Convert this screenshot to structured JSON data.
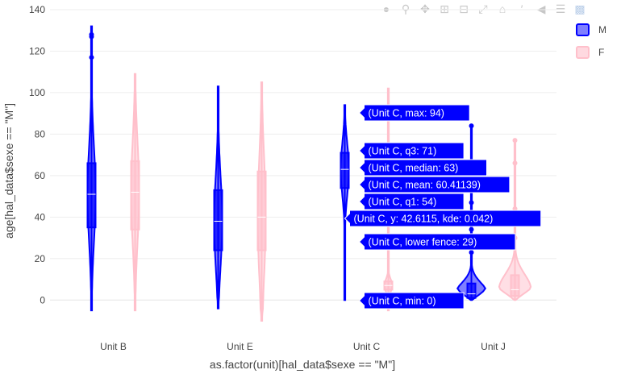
{
  "toolbar": {
    "icons": [
      "camera-icon",
      "zoom-icon",
      "pan-icon",
      "zoom-in-icon",
      "zoom-out-icon",
      "autoscale-icon",
      "reset-axes-icon",
      "spike-lines-icon",
      "hover-closest-icon",
      "hover-compare-icon",
      "plotly-logo-icon"
    ]
  },
  "chart_data": {
    "type": "violin",
    "xlabel": "as.factor(unit)[hal_data$sexe == \"M\"]",
    "ylabel": "age[hal_data$sexe == \"M\"]",
    "categories": [
      "Unit B",
      "Unit E",
      "Unit C",
      "Unit J"
    ],
    "ylim": [
      -10,
      140
    ],
    "yticks": [
      0,
      20,
      40,
      60,
      80,
      100,
      120,
      140
    ],
    "grid": true,
    "legend_position": "top-right",
    "series": [
      {
        "name": "M",
        "color": "#0000ff",
        "violins": [
          {
            "category": "Unit B",
            "min": -5,
            "q1": 35,
            "median": 51,
            "q3": 66,
            "max": 132,
            "extra_points": [
              117,
              127,
              128
            ]
          },
          {
            "category": "Unit E",
            "min": -4,
            "q1": 24,
            "median": 38,
            "q3": 53,
            "max": 103,
            "extra_points": []
          },
          {
            "category": "Unit C",
            "min": 0,
            "q1": 54,
            "median": 63,
            "mean": 60.41139,
            "q3": 71,
            "max": 94,
            "lower_fence": 29,
            "extra_points": []
          },
          {
            "category": "Unit J",
            "min": 0,
            "q1": 1,
            "median": 3,
            "q3": 8,
            "max": 84,
            "extra_points": [
              23,
              34,
              47,
              55,
              66,
              84
            ]
          }
        ]
      },
      {
        "name": "F",
        "color": "#ffc0cb",
        "violins": [
          {
            "category": "Unit B",
            "min": -5,
            "q1": 34,
            "median": 52,
            "q3": 67,
            "max": 109,
            "extra_points": []
          },
          {
            "category": "Unit E",
            "min": -10,
            "q1": 24,
            "median": 40,
            "q3": 62,
            "max": 105,
            "extra_points": []
          },
          {
            "category": "Unit C",
            "min": -5,
            "q1": 5,
            "median": 7,
            "q3": 9,
            "max": 102,
            "extra_points": []
          },
          {
            "category": "Unit J",
            "min": 0,
            "q1": 2,
            "median": 5,
            "q3": 12,
            "max": 77,
            "extra_points": [
              30,
              38,
              42,
              44,
              66,
              77
            ]
          }
        ]
      }
    ],
    "hover": {
      "category": "Unit C",
      "series_label": "M",
      "labels": [
        "(Unit C, max: 94)",
        "(Unit C, q3: 71)",
        "(Unit C, median: 63)",
        "(Unit C, mean: 60.41139)",
        "(Unit C, q1: 54)",
        "(Unit C, y: 42.6115, kde: 0.042)",
        "(Unit C, lower fence: 29)",
        "(Unit C, min: 0)"
      ],
      "label_values": [
        94,
        71,
        63,
        60.41139,
        54,
        42.6115,
        29,
        0
      ]
    }
  }
}
